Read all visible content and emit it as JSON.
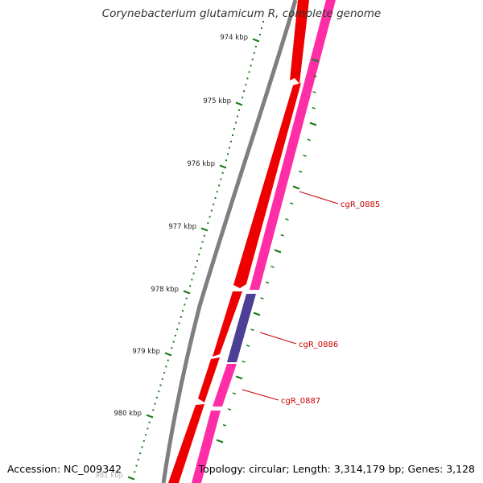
{
  "header": {
    "title": "Corynebacterium glutamicum R, complete genome"
  },
  "footer": {
    "accession": "Accession: NC_009342",
    "summary": "Topology: circular; Length: 3,314,179 bp; Genes: 3,128"
  },
  "ruler": {
    "tick_labels": [
      "974 kbp",
      "975 kbp",
      "976 kbp",
      "977 kbp",
      "978 kbp",
      "979 kbp",
      "980 kbp",
      "981 kbp"
    ],
    "color": "#1a7a1a"
  },
  "gene_labels": [
    "cgR_0885",
    "cgR_0886",
    "cgR_0887"
  ],
  "colors": {
    "backbone": "#7f7f7f",
    "forward_gene": "#ee0000",
    "cds": "#ff2da6",
    "highlight_cds": "#4b3f96",
    "label": "#cc0000"
  }
}
